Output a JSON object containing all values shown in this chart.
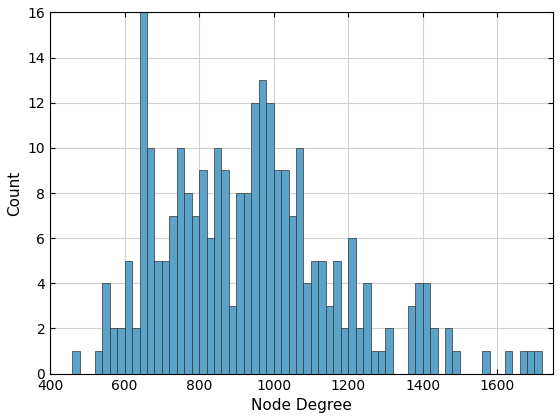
{
  "title": "",
  "xlabel": "Node Degree",
  "ylabel": "Count",
  "bar_color": "#5BA3C9",
  "bar_edge_color": "#333333",
  "xlim": [
    400,
    1750
  ],
  "ylim": [
    0,
    16
  ],
  "yticks": [
    0,
    2,
    4,
    6,
    8,
    10,
    12,
    14,
    16
  ],
  "xticks": [
    400,
    600,
    800,
    1000,
    1200,
    1400,
    1600
  ],
  "bin_width": 20,
  "bins_left": [
    460,
    520,
    540,
    560,
    580,
    600,
    620,
    640,
    660,
    680,
    700,
    720,
    740,
    760,
    780,
    800,
    820,
    840,
    860,
    880,
    900,
    920,
    940,
    960,
    980,
    1000,
    1020,
    1040,
    1060,
    1080,
    1100,
    1120,
    1140,
    1160,
    1180,
    1200,
    1220,
    1240,
    1260,
    1280,
    1300,
    1360,
    1380,
    1400,
    1420,
    1460,
    1480,
    1560,
    1620,
    1660,
    1680,
    1700
  ],
  "counts": [
    1,
    1,
    4,
    2,
    2,
    5,
    2,
    16,
    10,
    5,
    5,
    7,
    10,
    8,
    7,
    9,
    6,
    10,
    9,
    3,
    8,
    8,
    12,
    13,
    12,
    9,
    9,
    7,
    10,
    4,
    5,
    5,
    3,
    5,
    2,
    6,
    2,
    4,
    1,
    1,
    2,
    3,
    4,
    4,
    2,
    2,
    1,
    1,
    1,
    1,
    1,
    1
  ]
}
